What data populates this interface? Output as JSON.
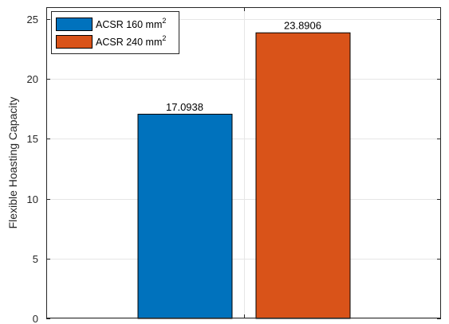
{
  "chart_data": {
    "type": "bar",
    "categories": [
      "ACSR 160 mm2",
      "ACSR 240 mm2"
    ],
    "series": [
      {
        "name": "ACSR 160 mm2",
        "label_main": "ACSR 160 mm",
        "label_sup": "2",
        "value": 17.0938,
        "value_label": "17.0938",
        "color": "#0072BD"
      },
      {
        "name": "ACSR 240 mm2",
        "label_main": "ACSR 240 mm",
        "label_sup": "2",
        "value": 23.8906,
        "value_label": "23.8906",
        "color": "#D95319"
      }
    ],
    "title": "",
    "xlabel": "",
    "ylabel": "Flexible Hoasting Capacity",
    "ylim": [
      0,
      26
    ],
    "yticks": [
      0,
      5,
      10,
      15,
      20,
      25
    ],
    "grid": true,
    "legend_position": "top-left"
  }
}
